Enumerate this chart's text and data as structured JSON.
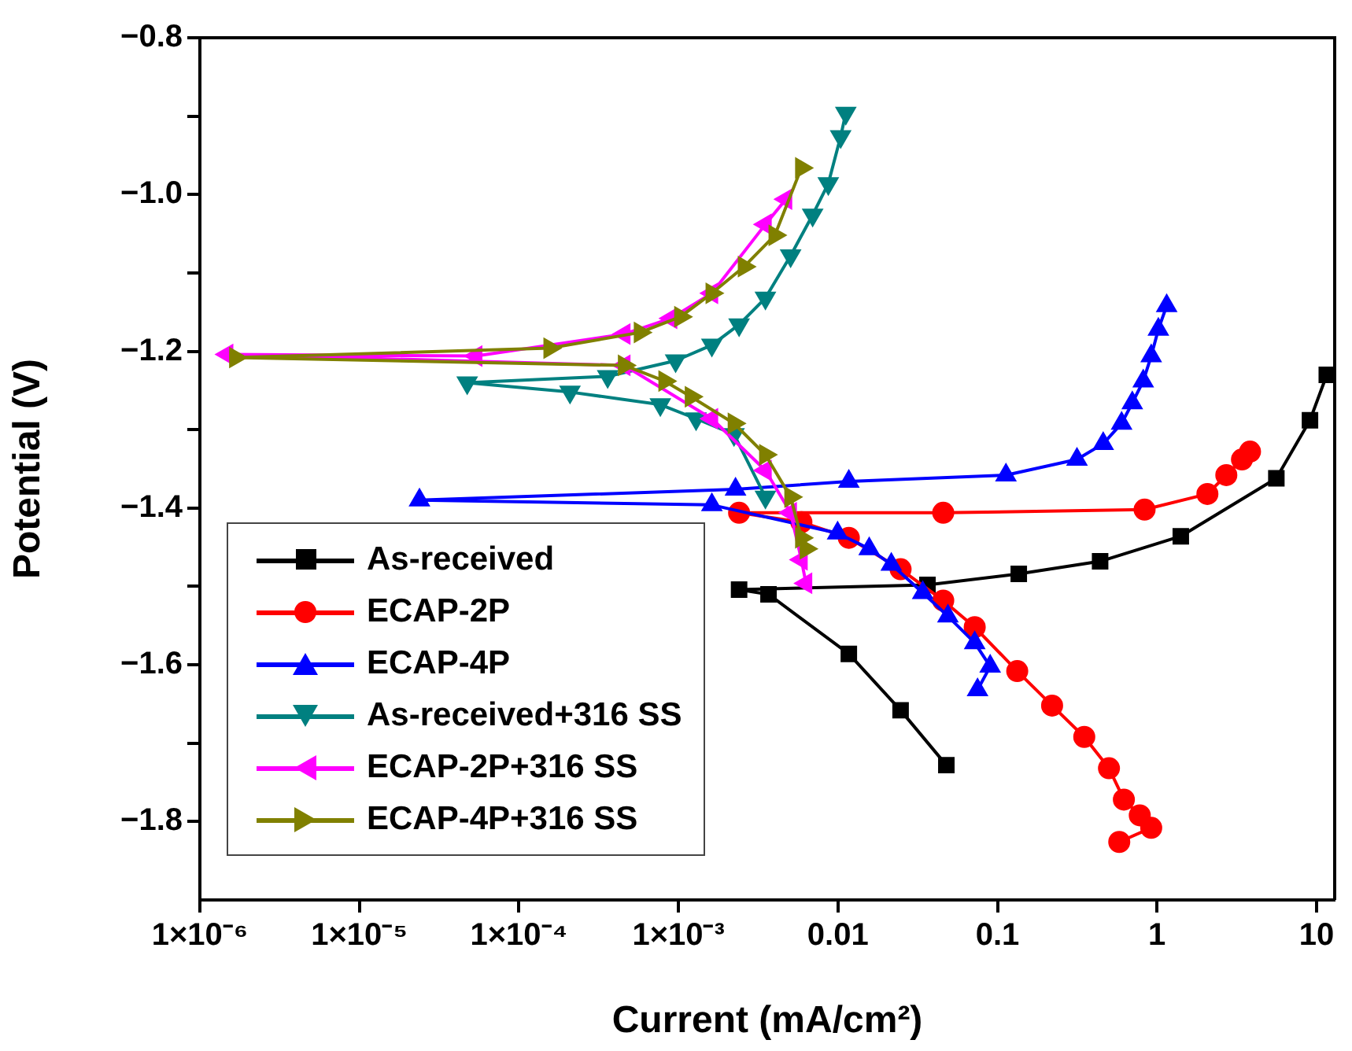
{
  "chart_data": {
    "type": "line",
    "xlabel": "Current (mA/cm²)",
    "ylabel": "Potential (V)",
    "log": "x",
    "legend": "bottom left",
    "grid": false,
    "xlim": [
      1e-06,
      13
    ],
    "ylim": [
      -1.9,
      -0.8
    ],
    "xticks": [
      {
        "value": 1e-06,
        "label": "1×10⁻⁶"
      },
      {
        "value": 1e-05,
        "label": "1×10⁻⁵"
      },
      {
        "value": 0.0001,
        "label": "1×10⁻⁴"
      },
      {
        "value": 0.001,
        "label": "1×10⁻³"
      },
      {
        "value": 0.01,
        "label": "0.01"
      },
      {
        "value": 0.1,
        "label": "0.1"
      },
      {
        "value": 1,
        "label": "1"
      },
      {
        "value": 10,
        "label": "10"
      }
    ],
    "yticks": [
      {
        "value": -0.8,
        "label": "−0.8"
      },
      {
        "value": -0.9,
        "label": null
      },
      {
        "value": -1.0,
        "label": "−1.0"
      },
      {
        "value": -1.1,
        "label": null
      },
      {
        "value": -1.2,
        "label": "−1.2"
      },
      {
        "value": -1.3,
        "label": null
      },
      {
        "value": -1.4,
        "label": "−1.4"
      },
      {
        "value": -1.5,
        "label": null
      },
      {
        "value": -1.6,
        "label": "−1.6"
      },
      {
        "value": -1.7,
        "label": null
      },
      {
        "value": -1.8,
        "label": "−1.8"
      }
    ],
    "series": [
      {
        "name": "As-received",
        "color": "#000000",
        "marker": "square",
        "x": [
          0.0478,
          0.0247,
          0.0117,
          0.00367,
          0.0024,
          0.0364,
          0.136,
          0.44,
          1.41,
          5.6,
          9.1,
          11.6
        ],
        "values": [
          -1.728,
          -1.658,
          -1.586,
          -1.51,
          -1.504,
          -1.498,
          -1.484,
          -1.468,
          -1.436,
          -1.362,
          -1.288,
          -1.23
        ]
      },
      {
        "name": "ECAP-2P",
        "color": "#ff0000",
        "marker": "circle",
        "x": [
          0.58,
          0.92,
          0.78,
          0.62,
          0.5,
          0.35,
          0.22,
          0.133,
          0.072,
          0.0457,
          0.0247,
          0.0117,
          0.0059,
          0.0024,
          0.0457,
          0.836,
          2.07,
          2.72,
          3.41,
          3.83
        ],
        "values": [
          -1.826,
          -1.808,
          -1.792,
          -1.772,
          -1.732,
          -1.692,
          -1.652,
          -1.608,
          -1.552,
          -1.518,
          -1.478,
          -1.438,
          -1.418,
          -1.406,
          -1.406,
          -1.402,
          -1.382,
          -1.358,
          -1.338,
          -1.328
        ]
      },
      {
        "name": "ECAP-4P",
        "color": "#0000ff",
        "marker": "triangle",
        "x": [
          0.075,
          0.09,
          0.072,
          0.0489,
          0.034,
          0.0216,
          0.0157,
          0.00995,
          0.00162,
          2.38e-05,
          0.00228,
          0.0117,
          0.113,
          0.315,
          0.46,
          0.6,
          0.7,
          0.82,
          0.92,
          1.02,
          1.15
        ],
        "values": [
          -1.632,
          -1.602,
          -1.572,
          -1.538,
          -1.508,
          -1.472,
          -1.452,
          -1.432,
          -1.396,
          -1.39,
          -1.376,
          -1.366,
          -1.358,
          -1.338,
          -1.318,
          -1.292,
          -1.266,
          -1.238,
          -1.206,
          -1.172,
          -1.142
        ]
      },
      {
        "name": "As-received+316 SS",
        "color": "#008080",
        "marker": "triangle_down",
        "x": [
          0.00351,
          0.00223,
          0.00129,
          0.00077,
          0.000209,
          4.74e-05,
          0.00036,
          0.00096,
          0.00162,
          0.0024,
          0.00351,
          0.00505,
          0.00694,
          0.0087,
          0.0104,
          0.0112
        ],
        "values": [
          -1.386,
          -1.306,
          -1.286,
          -1.268,
          -1.252,
          -1.24,
          -1.232,
          -1.212,
          -1.192,
          -1.166,
          -1.132,
          -1.078,
          -1.026,
          -0.986,
          -0.926,
          -0.896
        ]
      },
      {
        "name": "ECAP-2P+316 SS",
        "color": "#ff00ff",
        "marker": "triangle_left",
        "x": [
          0.0063,
          0.0059,
          0.00505,
          0.00351,
          0.00162,
          0.000457,
          1.48e-06,
          5.39e-05,
          0.000457,
          0.000898,
          0.00162,
          0.00351,
          0.00472
        ],
        "values": [
          -1.496,
          -1.466,
          -1.406,
          -1.352,
          -1.286,
          -1.218,
          -1.204,
          -1.206,
          -1.178,
          -1.158,
          -1.126,
          -1.038,
          -1.006
        ]
      },
      {
        "name": "ECAP-4P+316 SS",
        "color": "#808000",
        "marker": "triangle_right",
        "x": [
          0.0063,
          0.0059,
          0.00505,
          0.00351,
          0.00223,
          0.0012,
          0.00082,
          0.000457,
          1.67e-06,
          0.000156,
          0.000575,
          0.00103,
          0.00162,
          0.00258,
          0.00402,
          0.0059
        ],
        "values": [
          -1.452,
          -1.438,
          -1.386,
          -1.332,
          -1.292,
          -1.258,
          -1.238,
          -1.218,
          -1.208,
          -1.196,
          -1.176,
          -1.156,
          -1.126,
          -1.092,
          -1.052,
          -0.966
        ]
      }
    ]
  }
}
